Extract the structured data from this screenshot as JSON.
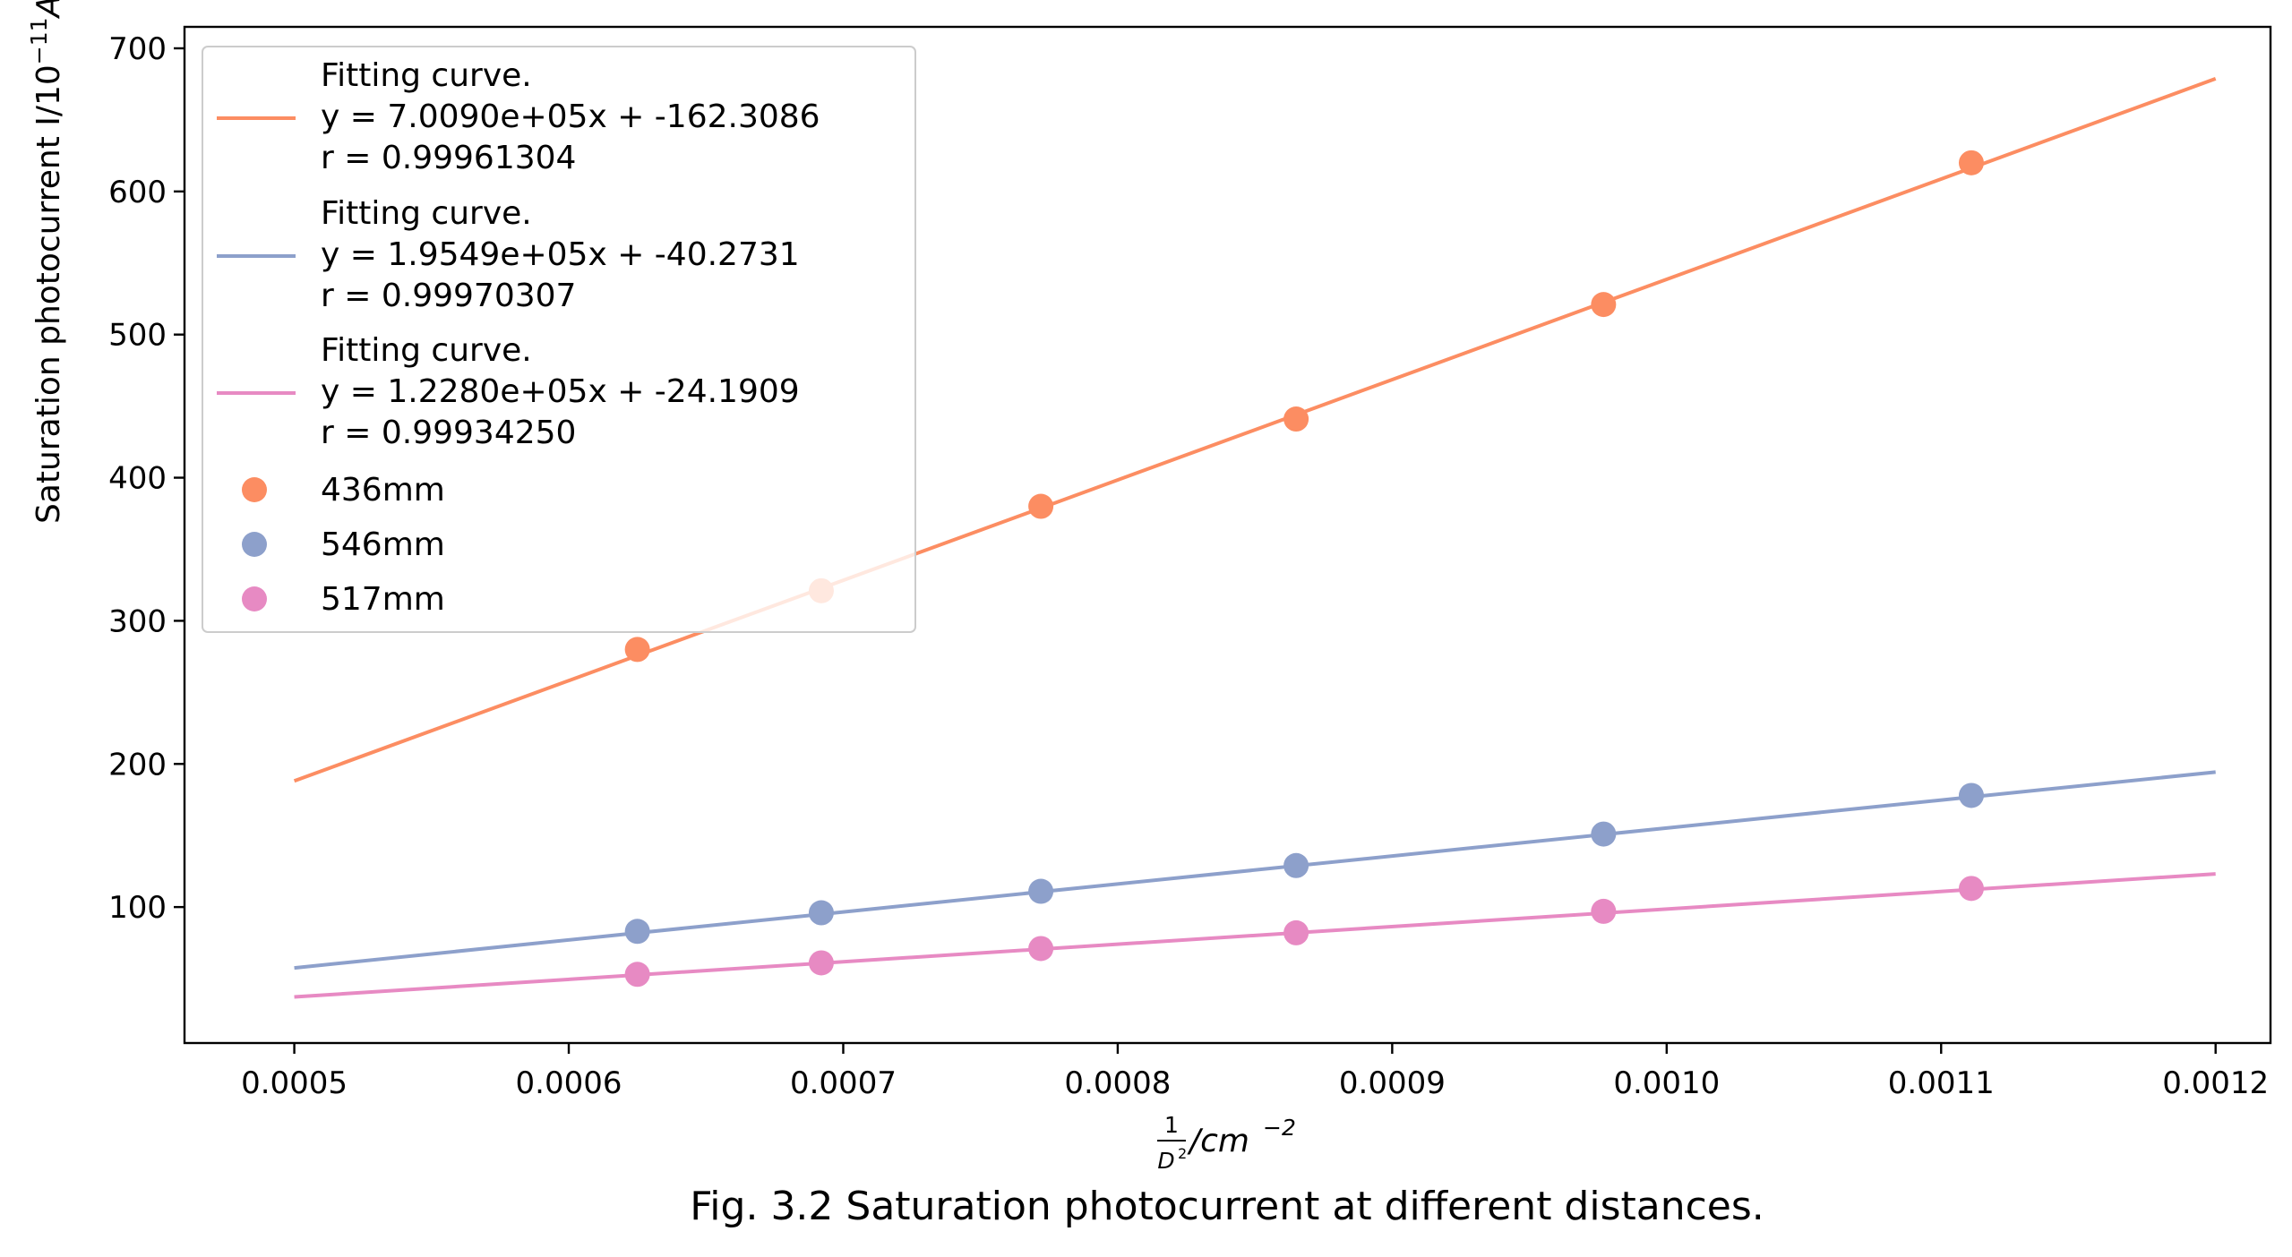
{
  "chart_data": {
    "type": "scatter",
    "xlabel_prefix": "1",
    "xlabel_denominator": "D",
    "xlabel_denominator_sup": "2",
    "xlabel_suffix": "/cm",
    "xlabel_suffix_sup": "−2",
    "ylabel": "Saturation photocurrent I/10",
    "ylabel_sup": "−11",
    "ylabel_unit": "A",
    "caption": "Fig. 3.2 Saturation photocurrent at different distances.",
    "xlim": [
      0.00046,
      0.00122
    ],
    "ylim": [
      5,
      715
    ],
    "x_ticks": [
      "0.0005",
      "0.0006",
      "0.0007",
      "0.0008",
      "0.0009",
      "0.0010",
      "0.0011",
      "0.0012"
    ],
    "x_tick_values": [
      0.0005,
      0.0006,
      0.0007,
      0.0008,
      0.0009,
      0.001,
      0.0011,
      0.0012
    ],
    "y_ticks": [
      "100",
      "200",
      "300",
      "400",
      "500",
      "600",
      "700"
    ],
    "y_tick_values": [
      100,
      200,
      300,
      400,
      500,
      600,
      700
    ],
    "grid": false,
    "legend_position": "top-left",
    "fits": [
      {
        "line1": "Fitting curve.",
        "line2": "y = 7.0090e+05x + -162.3086",
        "line3": "r = 0.99961304",
        "slope": 700900,
        "intercept": -162.3086,
        "x_range": [
          0.0005,
          0.0012
        ],
        "color": "#fc8d62"
      },
      {
        "line1": "Fitting curve.",
        "line2": "y = 1.9549e+05x + -40.2731",
        "line3": "r = 0.99970307",
        "slope": 195490,
        "intercept": -40.2731,
        "x_range": [
          0.0005,
          0.0012
        ],
        "color": "#8da0cb"
      },
      {
        "line1": "Fitting curve.",
        "line2": "y = 1.2280e+05x + -24.1909",
        "line3": "r = 0.99934250",
        "slope": 122800,
        "intercept": -24.1909,
        "x_range": [
          0.0005,
          0.0012
        ],
        "color": "#e78ac3"
      }
    ],
    "series": [
      {
        "name": "436mm",
        "color": "#fc8d62",
        "x": [
          0.000625,
          0.000692,
          0.000772,
          0.000865,
          0.000977,
          0.001111
        ],
        "y": [
          280,
          321,
          380,
          441,
          521,
          620
        ]
      },
      {
        "name": "546mm",
        "color": "#8da0cb",
        "x": [
          0.000625,
          0.000692,
          0.000772,
          0.000865,
          0.000977,
          0.001111
        ],
        "y": [
          83,
          96,
          111,
          129,
          151,
          178
        ]
      },
      {
        "name": "517mm",
        "color": "#e78ac3",
        "x": [
          0.000625,
          0.000692,
          0.000772,
          0.000865,
          0.000977,
          0.001111
        ],
        "y": [
          53,
          61,
          71,
          82,
          97,
          113
        ]
      }
    ]
  }
}
